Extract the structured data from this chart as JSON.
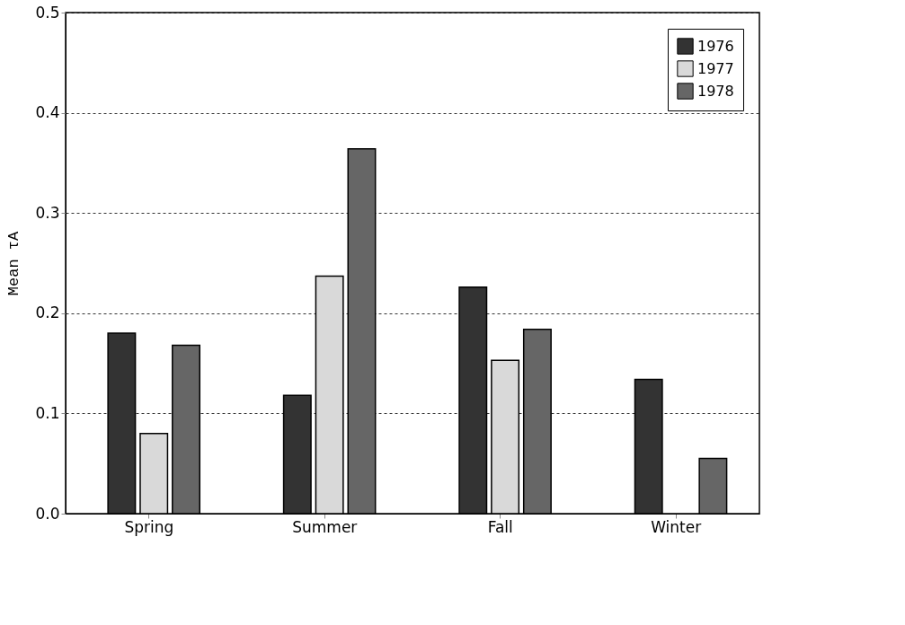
{
  "chart_data": {
    "type": "bar",
    "ylabel": "Mean τA",
    "categories": [
      "Spring",
      "Summer",
      "Fall",
      "Winter"
    ],
    "series": [
      {
        "name": "1976",
        "color": "#333333",
        "values": [
          0.18,
          0.118,
          0.226,
          0.134
        ]
      },
      {
        "name": "1977",
        "color": "#d9d9d9",
        "values": [
          0.08,
          0.237,
          0.153,
          null
        ]
      },
      {
        "name": "1978",
        "color": "#666666",
        "values": [
          0.168,
          0.364,
          0.184,
          0.055
        ]
      }
    ],
    "ylim": [
      0,
      0.5
    ],
    "yticks": [
      {
        "value": 0,
        "label": "0.0"
      },
      0.1,
      0.2,
      0.3,
      0.4,
      0.5
    ],
    "grid": "y",
    "legend": "top right"
  }
}
